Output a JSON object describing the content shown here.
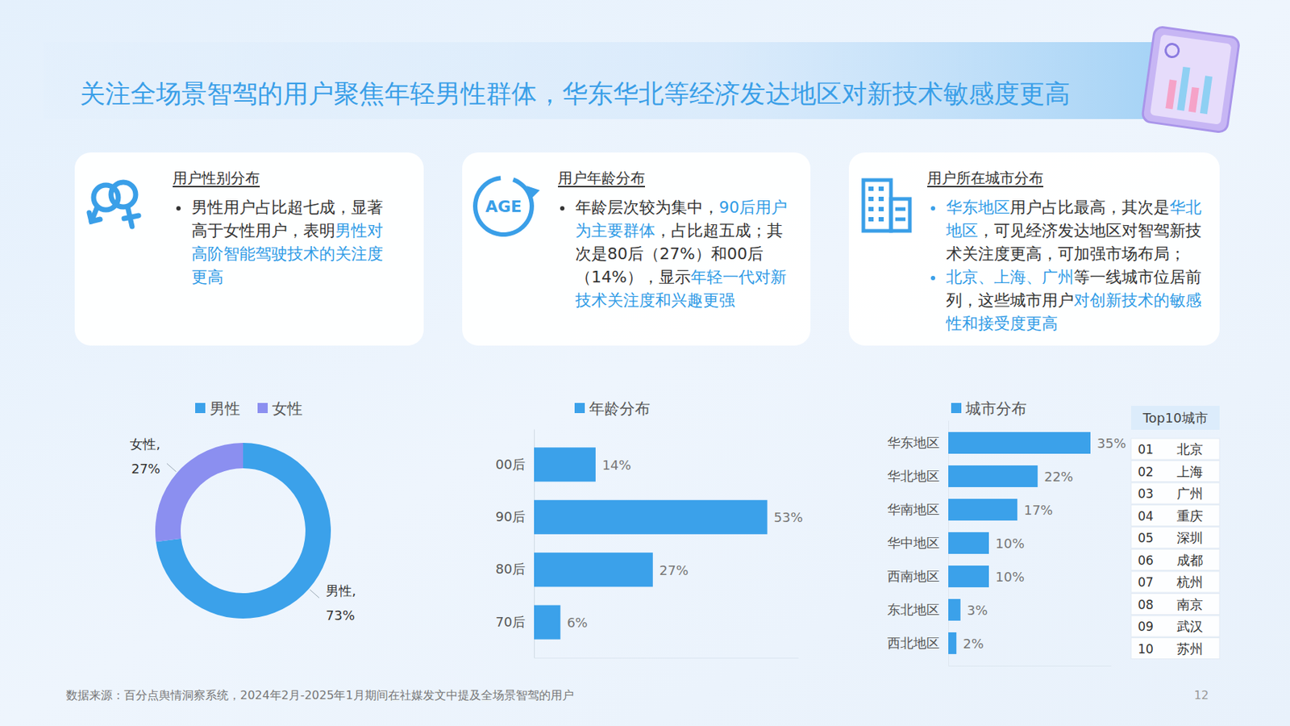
{
  "title": "关注全场景智驾的用户聚焦年轻男性群体，华东华北等经济发达地区对新技术敏感度更高",
  "cards": [
    {
      "heading": "用户性别分布",
      "bullets": [
        [
          {
            "text": "男性用户占比超七成，显著高于女性用户，表明",
            "color": "#333333"
          },
          {
            "text": "男性对高阶智能驾驶技术的关注度更高",
            "color": "#2f9be6"
          }
        ]
      ]
    },
    {
      "heading": "用户年龄分布",
      "icon_label": "AGE",
      "bullets": [
        [
          {
            "text": "年龄层次较为集中，",
            "color": "#333333"
          },
          {
            "text": "90后用户为主要群体",
            "color": "#2f9be6"
          },
          {
            "text": "，占比超五成；其次是80后（27%）和00后（14%），显示",
            "color": "#333333"
          },
          {
            "text": "年轻一代对新技术关注度和兴趣更强",
            "color": "#2f9be6"
          }
        ]
      ]
    },
    {
      "heading": "用户所在城市分布",
      "bullets": [
        [
          {
            "text": "华东地区",
            "color": "#2f9be6"
          },
          {
            "text": "用户占比最高，其次是",
            "color": "#333333"
          },
          {
            "text": "华北地区",
            "color": "#2f9be6"
          },
          {
            "text": "，可见经济发达地区对智驾新技术关注度更高，可加强市场布局；",
            "color": "#333333"
          }
        ],
        [
          {
            "text": "北京、上海、广州",
            "color": "#2f9be6"
          },
          {
            "text": "等一线城市位居前列，这些城市用户",
            "color": "#333333"
          },
          {
            "text": "对创新技术的敏感性和接受度更高",
            "color": "#2f9be6"
          }
        ]
      ]
    }
  ],
  "chart_data": [
    {
      "type": "pie",
      "categories": [
        "男性",
        "女性"
      ],
      "values": [
        73,
        27
      ],
      "value_labels": [
        "男性,\n73%",
        "女性,\n27%"
      ],
      "colors": [
        "#3ba1ea",
        "#8b8ff0"
      ],
      "data_labels": true,
      "legend": "top"
    },
    {
      "type": "bar",
      "orientation": "horizontal",
      "categories": [
        "00后",
        "90后",
        "80后",
        "70后"
      ],
      "series": [
        {
          "name": "年龄分布",
          "color": "#3ba1ea",
          "values": [
            14,
            53,
            27,
            6
          ],
          "value_labels": [
            "14%",
            "53%",
            "27%",
            "6%"
          ]
        }
      ],
      "xlim": [
        0,
        60
      ],
      "xticks": [],
      "tick_labels": "y",
      "data_labels": true,
      "legend": "top"
    },
    {
      "type": "bar",
      "orientation": "horizontal",
      "categories": [
        "华东地区",
        "华北地区",
        "华南地区",
        "华中地区",
        "西南地区",
        "东北地区",
        "西北地区"
      ],
      "series": [
        {
          "name": "城市分布",
          "color": "#3ba1ea",
          "values": [
            35,
            22,
            17,
            10,
            10,
            3,
            2
          ],
          "value_labels": [
            "35%",
            "22%",
            "17%",
            "10%",
            "10%",
            "3%",
            "2%"
          ]
        }
      ],
      "xlim": [
        0,
        40
      ],
      "xticks": [],
      "tick_labels": "y",
      "data_labels": true,
      "legend": "top"
    }
  ],
  "table": {
    "header": "Top10城市",
    "rows": [
      [
        "01",
        "北京"
      ],
      [
        "02",
        "上海"
      ],
      [
        "03",
        "广州"
      ],
      [
        "04",
        "重庆"
      ],
      [
        "05",
        "深圳"
      ],
      [
        "06",
        "成都"
      ],
      [
        "07",
        "杭州"
      ],
      [
        "08",
        "南京"
      ],
      [
        "09",
        "武汉"
      ],
      [
        "10",
        "苏州"
      ]
    ]
  },
  "footer": {
    "source": "数据来源：百分点舆情洞察系统，2024年2月-2025年1月期间在社媒发文中提及全场景智驾的用户",
    "page": "12"
  }
}
